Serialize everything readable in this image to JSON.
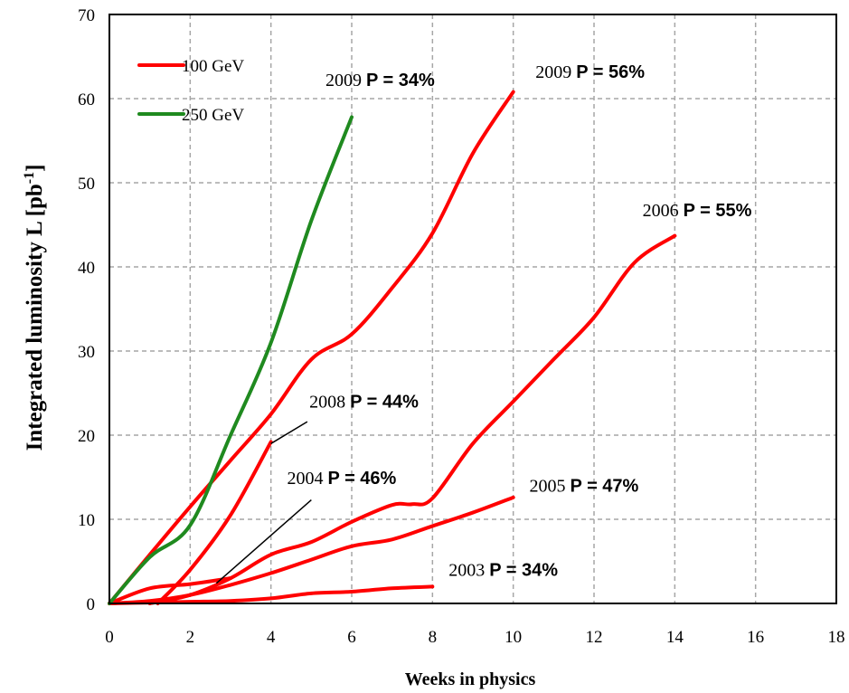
{
  "chart_data": {
    "type": "line",
    "title": "",
    "xlabel": "Weeks in physics",
    "ylabel_main": "Integrated luminosity L [pb",
    "ylabel_sup": "-1",
    "ylabel_end": "]",
    "xlim": [
      0,
      18
    ],
    "ylim": [
      0,
      70
    ],
    "xticks": [
      0,
      2,
      4,
      6,
      8,
      10,
      12,
      14,
      16,
      18
    ],
    "yticks": [
      0,
      10,
      20,
      30,
      40,
      50,
      60,
      70
    ],
    "grid": true,
    "legend_position": "top-left",
    "legend": [
      {
        "label": "100 GeV",
        "color": "#ff0000"
      },
      {
        "label": "250 GeV",
        "color": "#1f8a1f"
      }
    ],
    "series": [
      {
        "id": "s2003",
        "energy": "100 GeV",
        "color": "#ff0000",
        "x": [
          0,
          1,
          2,
          3,
          4,
          5,
          6,
          7,
          8
        ],
        "y": [
          0,
          0.1,
          0.2,
          0.3,
          0.6,
          1.2,
          1.4,
          1.8,
          2.0
        ]
      },
      {
        "id": "s2004",
        "energy": "100 GeV",
        "color": "#ff0000",
        "x": [
          0,
          1,
          2,
          3
        ],
        "y": [
          0,
          1.8,
          2.3,
          3.0
        ]
      },
      {
        "id": "s2005",
        "energy": "100 GeV",
        "color": "#ff0000",
        "x": [
          0,
          1,
          2,
          3,
          4,
          5,
          6,
          7,
          8,
          9,
          10
        ],
        "y": [
          0,
          0.3,
          1.0,
          2.2,
          3.6,
          5.2,
          6.8,
          7.6,
          9.2,
          10.8,
          12.6
        ]
      },
      {
        "id": "s2006",
        "energy": "100 GeV",
        "color": "#ff0000",
        "x": [
          1,
          2,
          3,
          4,
          5,
          6,
          7,
          7.5,
          8,
          9,
          10,
          11,
          12,
          13,
          14
        ],
        "y": [
          0,
          1.0,
          3.0,
          5.8,
          7.3,
          9.7,
          11.7,
          11.8,
          12.5,
          19.0,
          24.0,
          29.0,
          34.0,
          40.5,
          43.7
        ]
      },
      {
        "id": "s2008",
        "energy": "100 GeV",
        "color": "#ff0000",
        "x": [
          1.2,
          2,
          3,
          4
        ],
        "y": [
          0,
          4.0,
          10.5,
          19.2
        ]
      },
      {
        "id": "s2009_100",
        "energy": "100 GeV",
        "color": "#ff0000",
        "x": [
          0,
          1,
          2,
          3,
          4,
          5,
          6,
          7,
          8,
          9,
          10
        ],
        "y": [
          0,
          5.8,
          11.5,
          17.0,
          22.5,
          29.0,
          32.0,
          37.5,
          44.0,
          53.5,
          60.8
        ]
      },
      {
        "id": "s2009_250",
        "energy": "250 GeV",
        "color": "#1f8a1f",
        "x": [
          0,
          1,
          2,
          3,
          4,
          5,
          6
        ],
        "y": [
          0,
          5.5,
          9.3,
          20.0,
          31.0,
          45.5,
          57.8
        ]
      }
    ],
    "annotations": [
      {
        "id": "a2009_250",
        "year": "2009",
        "p": "P = 34%",
        "x": 5.35,
        "y": 61.5
      },
      {
        "id": "a2009_100",
        "year": "2009",
        "p": "P = 56%",
        "x": 10.55,
        "y": 62.5
      },
      {
        "id": "a2006",
        "year": "2006",
        "p": "P = 55%",
        "x": 13.2,
        "y": 46.0
      },
      {
        "id": "a2008",
        "year": "2008",
        "p": "P = 44%",
        "x": 4.95,
        "y": 23.3
      },
      {
        "id": "a2004",
        "year": "2004",
        "p": "P = 46%",
        "x": 4.4,
        "y": 14.2
      },
      {
        "id": "a2005",
        "year": "2005",
        "p": "P = 47%",
        "x": 10.4,
        "y": 13.3
      },
      {
        "id": "a2003",
        "year": "2003",
        "p": "P = 34%",
        "x": 8.4,
        "y": 3.3
      }
    ],
    "leader_lines": [
      {
        "id": "leader-2008",
        "from": [
          4.9,
          21.6
        ],
        "to": [
          4.0,
          19.0
        ]
      },
      {
        "id": "leader-2004",
        "from": [
          5.0,
          12.3
        ],
        "to": [
          2.65,
          2.4
        ]
      }
    ]
  }
}
